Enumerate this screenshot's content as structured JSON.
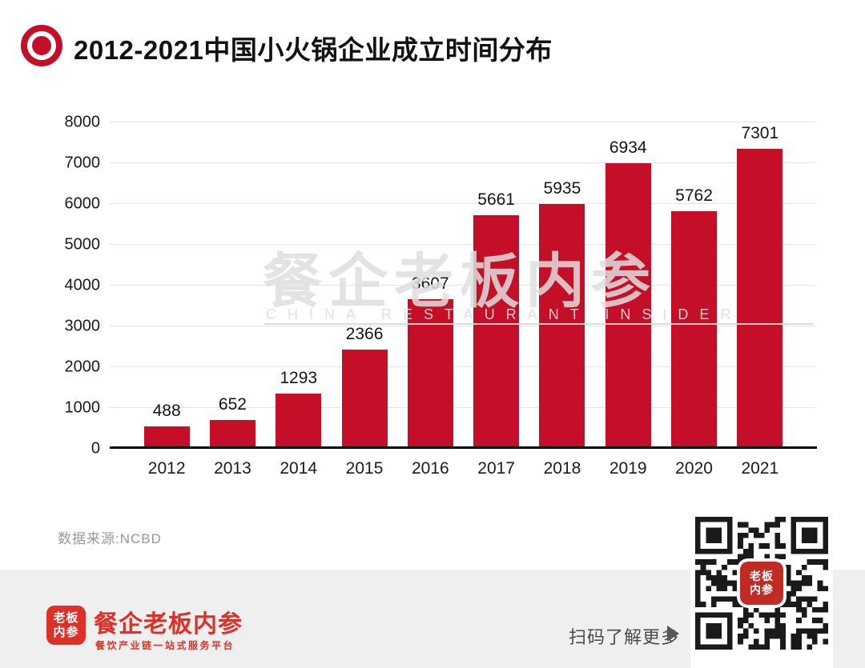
{
  "header": {
    "title": "2012-2021中国小火锅企业成立时间分布"
  },
  "chart_data": {
    "type": "bar",
    "title": "2012-2021中国小火锅企业成立时间分布",
    "categories": [
      "2012",
      "2013",
      "2014",
      "2015",
      "2016",
      "2017",
      "2018",
      "2019",
      "2020",
      "2021"
    ],
    "values": [
      488,
      652,
      1293,
      2366,
      3607,
      5661,
      5935,
      6934,
      5762,
      7301
    ],
    "xlabel": "",
    "ylabel": "",
    "ylim": [
      0,
      8000
    ],
    "yticks": [
      0,
      1000,
      2000,
      3000,
      4000,
      5000,
      6000,
      7000,
      8000
    ],
    "grid": true,
    "value_labels": true,
    "legend": false,
    "bar_color": "#C50E28"
  },
  "watermark": {
    "cn": "餐企老板内参",
    "en": "CHINA RESTAURANT INSIDER"
  },
  "source": {
    "label": "数据来源:NCBD"
  },
  "footer": {
    "logo_lines": [
      "老板",
      "内参"
    ],
    "brand": "餐企老板内参",
    "tagline": "餐饮产业链一站式服务平台",
    "scan_text": "扫码了解更多"
  },
  "colors": {
    "bar_red": "#C50E28",
    "footer_red": "#DF3028",
    "qr_logo_red": "#C12B24",
    "footer_band_gray": "#efefef",
    "gridline_gray": "#e4e4e4",
    "watermark_gray": "#dedede",
    "source_gray": "#989898",
    "scan_gray": "#4a4a4e",
    "text_black": "#111111"
  }
}
